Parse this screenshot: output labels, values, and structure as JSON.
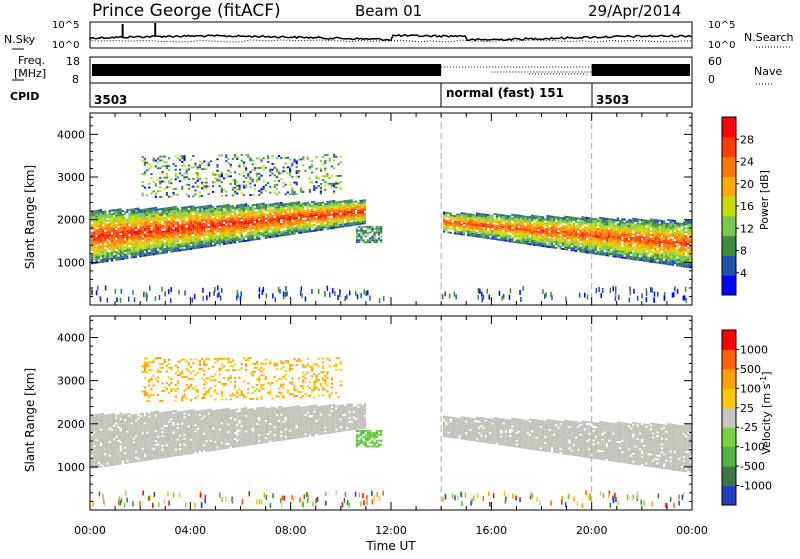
{
  "header": {
    "station": "Prince George (fitACF)",
    "beam": "Beam 01",
    "date": "29/Apr/2014"
  },
  "status": {
    "nsky": {
      "label": "N.Sky",
      "ticks": [
        "10^5",
        "10^0"
      ]
    },
    "nsearch": {
      "label": "N.Search",
      "ticks": [
        "10^5",
        "10^0"
      ]
    },
    "freq": {
      "label_line1": "Freq.",
      "label_line2": "[MHz]",
      "ticks": [
        "18",
        "8"
      ]
    },
    "nave": {
      "label": "Nave",
      "ticks": [
        "60",
        "0"
      ]
    },
    "cpid": {
      "label": "CPID",
      "segments": [
        {
          "label": "3503",
          "start_hour": 0
        },
        {
          "label": "normal (fast) 151",
          "start_hour": 14
        },
        {
          "label": "3503",
          "start_hour": 20
        }
      ]
    }
  },
  "colors": {
    "frame": "#000000",
    "dashed_lines": "#aaaaaa",
    "ground_scatter": "#c0c0b8",
    "power_scale": [
      "#0000ff",
      "#2050b0",
      "#3c8c3c",
      "#78c850",
      "#c8dc00",
      "#ffaa00",
      "#ff7800",
      "#ff3c00",
      "#ff0000"
    ],
    "velocity_scale": [
      "#2040c0",
      "#3c7840",
      "#50b446",
      "#78d23c",
      "#c8c8c0",
      "#ffc800",
      "#ffa000",
      "#ff6400",
      "#ff0000"
    ]
  },
  "chart_data": [
    {
      "type": "heatmap",
      "name": "power-panel",
      "xlabel": "Time UT",
      "ylabel": "Slant Range [km]",
      "xlim": [
        0,
        24
      ],
      "ylim": [
        0,
        4500
      ],
      "xticks": [
        "00:00",
        "04:00",
        "08:00",
        "12:00",
        "16:00",
        "20:00",
        "00:00"
      ],
      "yticks": [
        1000,
        2000,
        3000,
        4000
      ],
      "colorbar_label": "Power [dB]",
      "colorbar_ticks": [
        28,
        24,
        20,
        16,
        12,
        8,
        4
      ],
      "colorbar_range": [
        0,
        30
      ],
      "dashed_times": [
        14,
        20
      ],
      "bands": [
        {
          "desc": "main",
          "t0": 0,
          "t1": 11.0,
          "r0_start": 950,
          "r0_end": 1900,
          "r1_start": 2200,
          "r1_end": 2450,
          "peak": 24
        },
        {
          "desc": "main-after",
          "t0": 14,
          "t1": 24,
          "r0_start": 1700,
          "r0_end": 850,
          "r1_start": 2150,
          "r1_end": 1950,
          "peak": 22
        },
        {
          "desc": "upper-scatter",
          "t0": 2,
          "t1": 10,
          "r0_start": 2500,
          "r0_end": 2600,
          "r1_start": 3500,
          "r1_end": 3500,
          "peak": 10
        }
      ]
    },
    {
      "type": "heatmap",
      "name": "velocity-panel",
      "xlabel": "Time UT",
      "ylabel": "Slant Range [km]",
      "xlim": [
        0,
        24
      ],
      "ylim": [
        0,
        4500
      ],
      "xticks": [
        "00:00",
        "04:00",
        "08:00",
        "12:00",
        "16:00",
        "20:00",
        "00:00"
      ],
      "yticks": [
        1000,
        2000,
        3000,
        4000
      ],
      "colorbar_label": "Velocity [m s^-1]",
      "colorbar_ticks": [
        "1000",
        "500",
        "100",
        "25",
        "-25",
        "-100",
        "-500",
        "-1000"
      ],
      "dashed_times": [
        14,
        20
      ]
    }
  ]
}
